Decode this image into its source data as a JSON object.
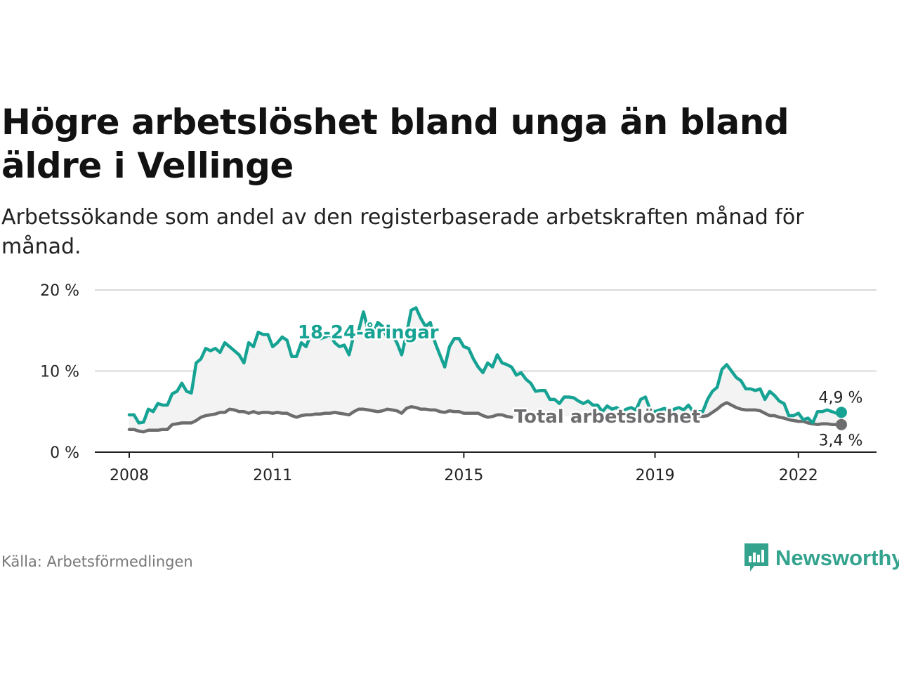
{
  "title": "Högre arbetslöshet bland unga än bland äldre i Vellinge",
  "subtitle": "Arbetssökande som andel av den registerbaserade arbetskraften månad för månad.",
  "source": "Källa: Arbetsförmedlingen",
  "brand": "Newsworthy",
  "colors": {
    "young": "#16a394",
    "total": "#6d6d6f",
    "band": "#f3f3f3",
    "grid": "#d9d9d9",
    "brand": "#34a38e"
  },
  "chart_data": {
    "type": "line",
    "title": "Högre arbetslöshet bland unga än bland äldre i Vellinge",
    "xlabel": "",
    "ylabel": "",
    "xlim": [
      2008.0,
      2022.9
    ],
    "ylim": [
      0,
      20
    ],
    "x_ticks": [
      2008,
      2011,
      2015,
      2019,
      2022
    ],
    "x_tick_labels": [
      "2008",
      "2011",
      "2015",
      "2019",
      "2022"
    ],
    "y_ticks": [
      0,
      10,
      20
    ],
    "y_tick_labels": [
      "0 %",
      "10 %",
      "20 %"
    ],
    "grid": true,
    "series": [
      {
        "name": "18-24-åringar",
        "end_label": "4,9 %",
        "points": [
          [
            2008.0,
            4.6
          ],
          [
            2008.1,
            4.6
          ],
          [
            2008.2,
            3.6
          ],
          [
            2008.3,
            3.7
          ],
          [
            2008.4,
            5.3
          ],
          [
            2008.5,
            5.0
          ],
          [
            2008.6,
            6.0
          ],
          [
            2008.7,
            5.8
          ],
          [
            2008.8,
            5.8
          ],
          [
            2008.9,
            7.2
          ],
          [
            2009.0,
            7.5
          ],
          [
            2009.1,
            8.5
          ],
          [
            2009.2,
            7.5
          ],
          [
            2009.3,
            7.3
          ],
          [
            2009.4,
            11.0
          ],
          [
            2009.5,
            11.5
          ],
          [
            2009.6,
            12.8
          ],
          [
            2009.7,
            12.5
          ],
          [
            2009.8,
            12.8
          ],
          [
            2009.9,
            12.3
          ],
          [
            2010.0,
            13.5
          ],
          [
            2010.1,
            13.0
          ],
          [
            2010.2,
            12.5
          ],
          [
            2010.3,
            12.0
          ],
          [
            2010.4,
            11.0
          ],
          [
            2010.5,
            13.5
          ],
          [
            2010.6,
            13.0
          ],
          [
            2010.7,
            14.8
          ],
          [
            2010.8,
            14.5
          ],
          [
            2010.9,
            14.5
          ],
          [
            2011.0,
            13.0
          ],
          [
            2011.1,
            13.5
          ],
          [
            2011.2,
            14.2
          ],
          [
            2011.3,
            13.8
          ],
          [
            2011.4,
            11.8
          ],
          [
            2011.5,
            11.8
          ],
          [
            2011.6,
            13.5
          ],
          [
            2011.7,
            13.0
          ],
          [
            2011.8,
            14.5
          ],
          [
            2011.9,
            15.2
          ],
          [
            2012.0,
            14.0
          ],
          [
            2012.1,
            14.2
          ],
          [
            2012.2,
            14.5
          ],
          [
            2012.3,
            13.5
          ],
          [
            2012.4,
            13.0
          ],
          [
            2012.5,
            13.2
          ],
          [
            2012.6,
            12.0
          ],
          [
            2012.7,
            14.5
          ],
          [
            2012.8,
            15.0
          ],
          [
            2012.9,
            17.3
          ],
          [
            2013.0,
            15.0
          ],
          [
            2013.1,
            14.5
          ],
          [
            2013.2,
            16.0
          ],
          [
            2013.3,
            15.5
          ],
          [
            2013.4,
            14.0
          ],
          [
            2013.5,
            14.5
          ],
          [
            2013.6,
            13.5
          ],
          [
            2013.7,
            12.0
          ],
          [
            2013.8,
            14.5
          ],
          [
            2013.9,
            17.5
          ],
          [
            2014.0,
            17.8
          ],
          [
            2014.1,
            16.5
          ],
          [
            2014.2,
            15.5
          ],
          [
            2014.3,
            16.0
          ],
          [
            2014.4,
            13.5
          ],
          [
            2014.5,
            12.0
          ],
          [
            2014.6,
            10.5
          ],
          [
            2014.7,
            13.0
          ],
          [
            2014.8,
            14.0
          ],
          [
            2014.9,
            14.0
          ],
          [
            2015.0,
            13.0
          ],
          [
            2015.1,
            12.8
          ],
          [
            2015.2,
            11.5
          ],
          [
            2015.3,
            10.5
          ],
          [
            2015.4,
            9.8
          ],
          [
            2015.5,
            11.0
          ],
          [
            2015.6,
            10.5
          ],
          [
            2015.7,
            12.0
          ],
          [
            2015.8,
            11.0
          ],
          [
            2015.9,
            10.8
          ],
          [
            2016.0,
            10.5
          ],
          [
            2016.1,
            9.5
          ],
          [
            2016.2,
            9.8
          ],
          [
            2016.3,
            9.0
          ],
          [
            2016.4,
            8.5
          ],
          [
            2016.5,
            7.5
          ],
          [
            2016.6,
            7.6
          ],
          [
            2016.7,
            7.6
          ],
          [
            2016.8,
            6.5
          ],
          [
            2016.9,
            6.5
          ],
          [
            2017.0,
            6.0
          ],
          [
            2017.1,
            6.8
          ],
          [
            2017.2,
            6.8
          ],
          [
            2017.3,
            6.7
          ],
          [
            2017.4,
            6.3
          ],
          [
            2017.5,
            6.0
          ],
          [
            2017.6,
            6.3
          ],
          [
            2017.7,
            5.8
          ],
          [
            2017.8,
            5.8
          ],
          [
            2017.9,
            5.0
          ],
          [
            2018.0,
            5.7
          ],
          [
            2018.1,
            5.3
          ],
          [
            2018.2,
            5.5
          ],
          [
            2018.3,
            5.0
          ],
          [
            2018.4,
            5.3
          ],
          [
            2018.5,
            5.5
          ],
          [
            2018.6,
            5.2
          ],
          [
            2018.7,
            6.5
          ],
          [
            2018.8,
            6.8
          ],
          [
            2018.9,
            5.2
          ],
          [
            2019.0,
            5.0
          ],
          [
            2019.1,
            5.2
          ],
          [
            2019.2,
            5.4
          ],
          [
            2019.3,
            5.0
          ],
          [
            2019.4,
            5.3
          ],
          [
            2019.5,
            5.5
          ],
          [
            2019.6,
            5.2
          ],
          [
            2019.7,
            5.8
          ],
          [
            2019.8,
            5.0
          ],
          [
            2019.9,
            5.0
          ],
          [
            2020.0,
            5.0
          ],
          [
            2020.1,
            6.5
          ],
          [
            2020.2,
            7.5
          ],
          [
            2020.3,
            8.0
          ],
          [
            2020.4,
            10.2
          ],
          [
            2020.5,
            10.8
          ],
          [
            2020.6,
            10.0
          ],
          [
            2020.7,
            9.2
          ],
          [
            2020.8,
            8.8
          ],
          [
            2020.9,
            7.8
          ],
          [
            2021.0,
            7.8
          ],
          [
            2021.1,
            7.6
          ],
          [
            2021.2,
            7.8
          ],
          [
            2021.3,
            6.5
          ],
          [
            2021.4,
            7.5
          ],
          [
            2021.5,
            7.0
          ],
          [
            2021.6,
            6.3
          ],
          [
            2021.7,
            6.0
          ],
          [
            2021.8,
            4.5
          ],
          [
            2021.9,
            4.5
          ],
          [
            2022.0,
            4.8
          ],
          [
            2022.1,
            4.0
          ],
          [
            2022.2,
            4.2
          ],
          [
            2022.3,
            3.6
          ],
          [
            2022.4,
            5.0
          ],
          [
            2022.5,
            5.0
          ],
          [
            2022.6,
            5.2
          ],
          [
            2022.7,
            5.0
          ],
          [
            2022.8,
            4.8
          ],
          [
            2022.9,
            4.9
          ]
        ]
      },
      {
        "name": "Total arbetslöshet",
        "end_label": "3,4 %",
        "points": [
          [
            2008.0,
            2.8
          ],
          [
            2008.1,
            2.8
          ],
          [
            2008.2,
            2.6
          ],
          [
            2008.3,
            2.5
          ],
          [
            2008.4,
            2.7
          ],
          [
            2008.5,
            2.7
          ],
          [
            2008.6,
            2.7
          ],
          [
            2008.7,
            2.8
          ],
          [
            2008.8,
            2.8
          ],
          [
            2008.9,
            3.4
          ],
          [
            2009.0,
            3.5
          ],
          [
            2009.1,
            3.6
          ],
          [
            2009.2,
            3.6
          ],
          [
            2009.3,
            3.6
          ],
          [
            2009.4,
            3.9
          ],
          [
            2009.5,
            4.3
          ],
          [
            2009.6,
            4.5
          ],
          [
            2009.7,
            4.6
          ],
          [
            2009.8,
            4.7
          ],
          [
            2009.9,
            4.9
          ],
          [
            2010.0,
            4.9
          ],
          [
            2010.1,
            5.3
          ],
          [
            2010.2,
            5.2
          ],
          [
            2010.3,
            5.0
          ],
          [
            2010.4,
            5.0
          ],
          [
            2010.5,
            4.8
          ],
          [
            2010.6,
            5.0
          ],
          [
            2010.7,
            4.8
          ],
          [
            2010.8,
            4.9
          ],
          [
            2010.9,
            4.9
          ],
          [
            2011.0,
            4.8
          ],
          [
            2011.1,
            4.9
          ],
          [
            2011.2,
            4.8
          ],
          [
            2011.3,
            4.8
          ],
          [
            2011.4,
            4.5
          ],
          [
            2011.5,
            4.3
          ],
          [
            2011.6,
            4.5
          ],
          [
            2011.7,
            4.6
          ],
          [
            2011.8,
            4.6
          ],
          [
            2011.9,
            4.7
          ],
          [
            2012.0,
            4.7
          ],
          [
            2012.1,
            4.8
          ],
          [
            2012.2,
            4.8
          ],
          [
            2012.3,
            4.9
          ],
          [
            2012.4,
            4.8
          ],
          [
            2012.5,
            4.7
          ],
          [
            2012.6,
            4.6
          ],
          [
            2012.7,
            5.0
          ],
          [
            2012.8,
            5.3
          ],
          [
            2012.9,
            5.3
          ],
          [
            2013.0,
            5.2
          ],
          [
            2013.1,
            5.1
          ],
          [
            2013.2,
            5.0
          ],
          [
            2013.3,
            5.1
          ],
          [
            2013.4,
            5.3
          ],
          [
            2013.5,
            5.2
          ],
          [
            2013.6,
            5.1
          ],
          [
            2013.7,
            4.8
          ],
          [
            2013.8,
            5.4
          ],
          [
            2013.9,
            5.6
          ],
          [
            2014.0,
            5.5
          ],
          [
            2014.1,
            5.3
          ],
          [
            2014.2,
            5.3
          ],
          [
            2014.3,
            5.2
          ],
          [
            2014.4,
            5.2
          ],
          [
            2014.5,
            5.0
          ],
          [
            2014.6,
            4.9
          ],
          [
            2014.7,
            5.1
          ],
          [
            2014.8,
            5.0
          ],
          [
            2014.9,
            5.0
          ],
          [
            2015.0,
            4.8
          ],
          [
            2015.1,
            4.8
          ],
          [
            2015.2,
            4.8
          ],
          [
            2015.3,
            4.8
          ],
          [
            2015.4,
            4.5
          ],
          [
            2015.5,
            4.3
          ],
          [
            2015.6,
            4.4
          ],
          [
            2015.7,
            4.6
          ],
          [
            2015.8,
            4.6
          ],
          [
            2015.9,
            4.4
          ],
          [
            2016.0,
            4.3
          ],
          [
            2019.8,
            4.5
          ],
          [
            2019.9,
            4.5
          ],
          [
            2020.0,
            4.4
          ],
          [
            2020.1,
            4.5
          ],
          [
            2020.2,
            4.9
          ],
          [
            2020.3,
            5.3
          ],
          [
            2020.4,
            5.8
          ],
          [
            2020.5,
            6.1
          ],
          [
            2020.6,
            5.8
          ],
          [
            2020.7,
            5.5
          ],
          [
            2020.8,
            5.3
          ],
          [
            2020.9,
            5.2
          ],
          [
            2021.0,
            5.2
          ],
          [
            2021.1,
            5.2
          ],
          [
            2021.2,
            5.1
          ],
          [
            2021.3,
            4.8
          ],
          [
            2021.4,
            4.5
          ],
          [
            2021.5,
            4.5
          ],
          [
            2021.6,
            4.3
          ],
          [
            2021.7,
            4.2
          ],
          [
            2021.8,
            4.0
          ],
          [
            2021.9,
            3.9
          ],
          [
            2022.0,
            3.8
          ],
          [
            2022.1,
            3.8
          ],
          [
            2022.2,
            3.6
          ],
          [
            2022.3,
            3.5
          ],
          [
            2022.4,
            3.4
          ],
          [
            2022.5,
            3.5
          ],
          [
            2022.6,
            3.5
          ],
          [
            2022.7,
            3.4
          ],
          [
            2022.8,
            3.4
          ],
          [
            2022.9,
            3.4
          ]
        ]
      }
    ],
    "annotations": [
      {
        "text": "18-24-åringar",
        "x": 2013.0,
        "y": 14.8,
        "series": "18-24-åringar"
      },
      {
        "text": "Total arbetslöshet",
        "x": 2018.0,
        "y": 4.4,
        "series": "Total arbetslöshet"
      }
    ]
  }
}
